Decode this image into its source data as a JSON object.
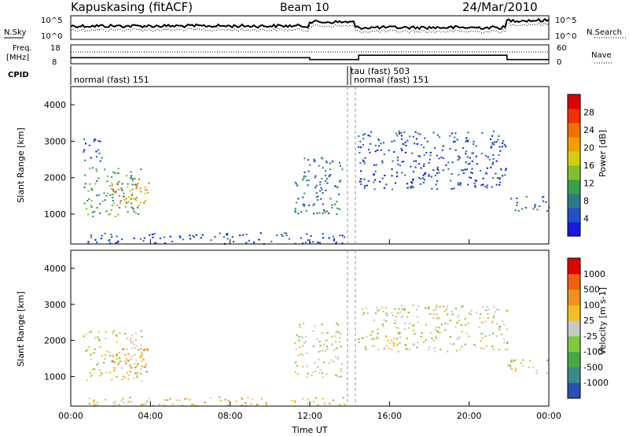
{
  "header": {
    "station": "Kapuskasing (fitACF)",
    "beam": "Beam 10",
    "date": "24/Mar/2010"
  },
  "top_panels": {
    "nsky_label": "N.Sky",
    "nsky_ticks": [
      "10^5",
      "10^0"
    ],
    "nsearch_label": "N.Search",
    "nsearch_ticks": [
      "10^5",
      "10^0"
    ],
    "freq_label": "Freq.",
    "freq_unit": "[MHz]",
    "freq_ticks": [
      "18",
      "8"
    ],
    "nave_label": "Nave",
    "nave_ticks": [
      "60",
      "0"
    ],
    "cpid_label": "CPID",
    "cpid_segments": [
      {
        "label": "normal (fast) 151",
        "start_hour": 0,
        "end_hour": 14.25
      },
      {
        "label": "tau (fast) 503",
        "start_hour": 14.25,
        "end_hour": 14.5
      },
      {
        "label": "normal (fast) 151",
        "start_hour": 14.5,
        "end_hour": 24
      }
    ],
    "freq_step_values": [
      {
        "start_hour": 0,
        "end_hour": 12,
        "mhz": 11.2
      },
      {
        "start_hour": 12,
        "end_hour": 14.25,
        "mhz": 10.2
      },
      {
        "start_hour": 14.25,
        "end_hour": 14.45,
        "mhz": 10.2
      },
      {
        "start_hour": 14.45,
        "end_hour": 21.9,
        "mhz": 12.5
      },
      {
        "start_hour": 21.9,
        "end_hour": 24,
        "mhz": 10.2
      }
    ]
  },
  "chart_data": [
    {
      "type": "heatmap",
      "name": "power",
      "ylabel": "Slant Range [km]",
      "ylim": [
        180,
        4500
      ],
      "yticks": [
        1000,
        2000,
        3000,
        4000
      ],
      "xlim": [
        0,
        24
      ],
      "colorbar_label": "Power [dB]",
      "colorbar_ticks": [
        "28",
        "24",
        "20",
        "16",
        "12",
        "8",
        "4"
      ],
      "colorbar_colors": [
        "#1818e0",
        "#2250c8",
        "#2e7a8a",
        "#3aa050",
        "#80c030",
        "#d0d010",
        "#f0a000",
        "#f07000",
        "#f03000",
        "#e00000"
      ],
      "regions": [
        {
          "start_hour": 0.6,
          "end_hour": 3.6,
          "range_low": 950,
          "range_high": 2300,
          "level": 3
        },
        {
          "start_hour": 2.0,
          "end_hour": 3.9,
          "range_low": 1100,
          "range_high": 1900,
          "level": 6
        },
        {
          "start_hour": 0.6,
          "end_hour": 1.6,
          "range_low": 2400,
          "range_high": 3100,
          "level": 1
        },
        {
          "start_hour": 11.2,
          "end_hour": 13.6,
          "range_low": 1000,
          "range_high": 2600,
          "level": 2
        },
        {
          "start_hour": 14.4,
          "end_hour": 21.9,
          "range_low": 1700,
          "range_high": 3300,
          "level": 1
        },
        {
          "start_hour": 21.9,
          "end_hour": 24.0,
          "range_low": 1100,
          "range_high": 1500,
          "level": 2
        },
        {
          "start_hour": 0.8,
          "end_hour": 13.8,
          "range_low": 200,
          "range_high": 500,
          "level": 1
        }
      ]
    },
    {
      "type": "heatmap",
      "name": "velocity",
      "ylabel": "Slant Range [km]",
      "ylim": [
        180,
        4500
      ],
      "yticks": [
        1000,
        2000,
        3000,
        4000
      ],
      "xlim": [
        0,
        24
      ],
      "xticks": [
        "00:00",
        "04:00",
        "08:00",
        "12:00",
        "16:00",
        "20:00",
        "00:00"
      ],
      "xlabel": "Time UT",
      "colorbar_label": "Velocity [m s-1]",
      "colorbar_ticks": [
        "1000",
        "500",
        "100",
        "25",
        "-25",
        "-100",
        "-500",
        "-1000"
      ],
      "colorbar_colors": [
        "#2850b0",
        "#3a8a8a",
        "#48a848",
        "#80c840",
        "#c8c8c8",
        "#f0c020",
        "#f09020",
        "#f06010",
        "#e00000"
      ],
      "regions": [
        {
          "start_hour": 0.6,
          "end_hour": 3.6,
          "range_low": 900,
          "range_high": 2300,
          "level": 4
        },
        {
          "start_hour": 2.0,
          "end_hour": 3.9,
          "range_low": 1100,
          "range_high": 1800,
          "level": 6
        },
        {
          "start_hour": 11.2,
          "end_hour": 13.6,
          "range_low": 1000,
          "range_high": 2500,
          "level": 4
        },
        {
          "start_hour": 14.4,
          "end_hour": 21.9,
          "range_low": 1700,
          "range_high": 3000,
          "level": 4
        },
        {
          "start_hour": 21.9,
          "end_hour": 24.0,
          "range_low": 1100,
          "range_high": 1500,
          "level": 4
        },
        {
          "start_hour": 0.8,
          "end_hour": 13.8,
          "range_low": 200,
          "range_high": 450,
          "level": 5
        }
      ]
    }
  ]
}
